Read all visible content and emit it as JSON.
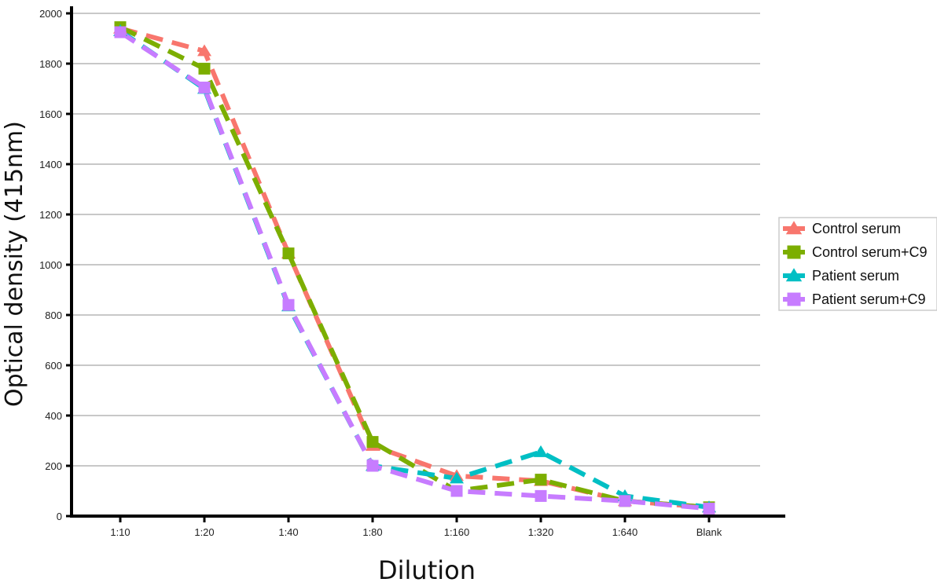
{
  "chart_data": {
    "type": "line",
    "title": "",
    "xlabel": "Dilution",
    "ylabel": "Optical density (415nm)",
    "categories": [
      "1:10",
      "1:20",
      "1:40",
      "1:80",
      "1:160",
      "1:320",
      "1:640",
      "Blank"
    ],
    "ylim": [
      0,
      2000
    ],
    "yticks": [
      0,
      200,
      400,
      600,
      800,
      1000,
      1200,
      1400,
      1600,
      1800,
      2000
    ],
    "grid": "horizontal",
    "legend_position": "right",
    "series": [
      {
        "name": "Control serum",
        "color": "#F8766D",
        "marker": "triangle",
        "values": [
          1940,
          1850,
          1045,
          280,
          160,
          140,
          60,
          35
        ]
      },
      {
        "name": "Control serum+C9",
        "color": "#7CAE00",
        "marker": "square",
        "values": [
          1945,
          1780,
          1045,
          295,
          100,
          145,
          60,
          35
        ]
      },
      {
        "name": "Patient serum",
        "color": "#00BFC4",
        "marker": "triangle",
        "values": [
          1930,
          1700,
          835,
          200,
          150,
          255,
          80,
          35
        ]
      },
      {
        "name": "Patient serum+C9",
        "color": "#C77CFF",
        "marker": "square",
        "values": [
          1925,
          1705,
          840,
          200,
          100,
          80,
          60,
          30
        ]
      }
    ]
  }
}
